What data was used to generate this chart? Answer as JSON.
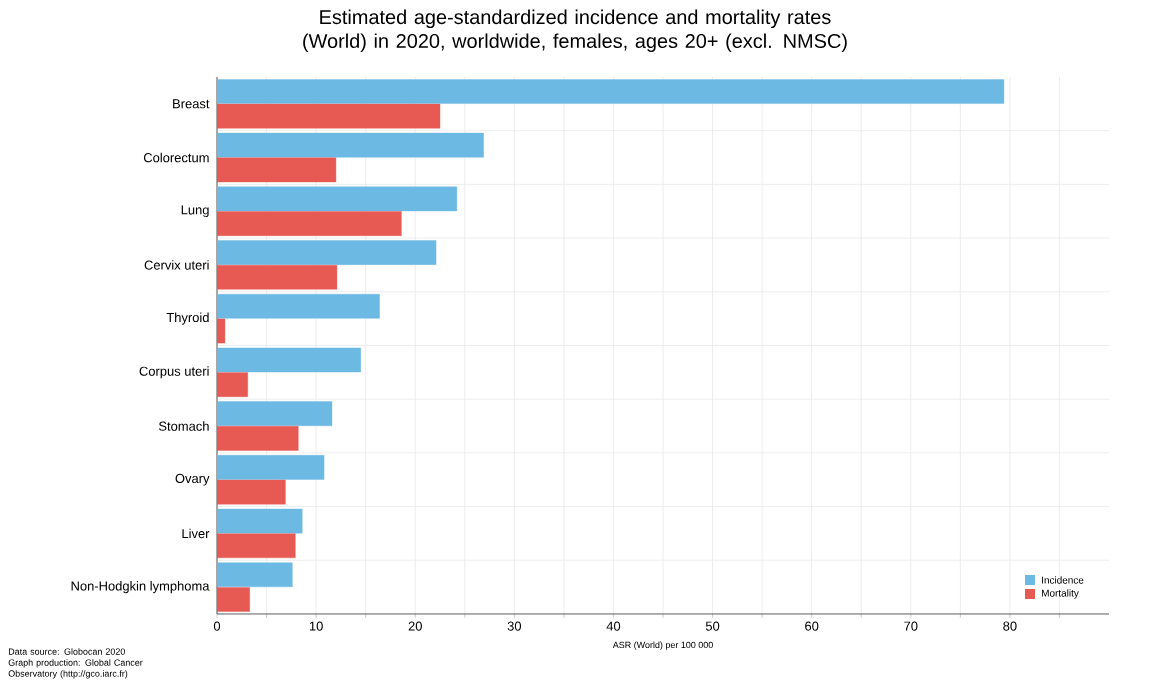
{
  "chart_data": {
    "type": "bar",
    "orientation": "horizontal",
    "title": "Estimated age-standardized incidence and mortality rates (World) in 2020, worldwide, females, ages 20+ (excl. NMSC)",
    "xlabel": "ASR (World) per 100 000",
    "categories": [
      "Breast",
      "Colorectum",
      "Lung",
      "Cervix uteri",
      "Thyroid",
      "Corpus uteri",
      "Stomach",
      "Ovary",
      "Liver",
      "Non-Hodgkin lymphoma"
    ],
    "series": [
      {
        "name": "Incidence",
        "color": "#6cb9e4",
        "values": [
          79.4,
          26.9,
          24.2,
          22.1,
          16.4,
          14.5,
          11.6,
          10.8,
          8.6,
          7.6
        ]
      },
      {
        "name": "Mortality",
        "color": "#e75a53",
        "values": [
          22.5,
          12.0,
          18.6,
          12.1,
          0.8,
          3.1,
          8.2,
          6.9,
          7.9,
          3.3
        ]
      }
    ],
    "xlim": [
      0,
      90
    ],
    "xticks": [
      0,
      {
        "value": 5,
        "label": null
      },
      10,
      {
        "value": 15,
        "label": null
      },
      20,
      {
        "value": 25,
        "label": null
      },
      30,
      {
        "value": 35,
        "label": null
      },
      40,
      {
        "value": 45,
        "label": null
      },
      50,
      {
        "value": 55,
        "label": null
      },
      60,
      {
        "value": 65,
        "label": null
      },
      70,
      {
        "value": 75,
        "label": null
      },
      80,
      {
        "value": 85,
        "label": null
      }
    ],
    "grid": true,
    "legend": "bottom right",
    "annotations": [
      "Data source: Globocan 2020",
      "Graph production: Global Cancer Observatory (http://gco.iarc.fr)"
    ]
  }
}
